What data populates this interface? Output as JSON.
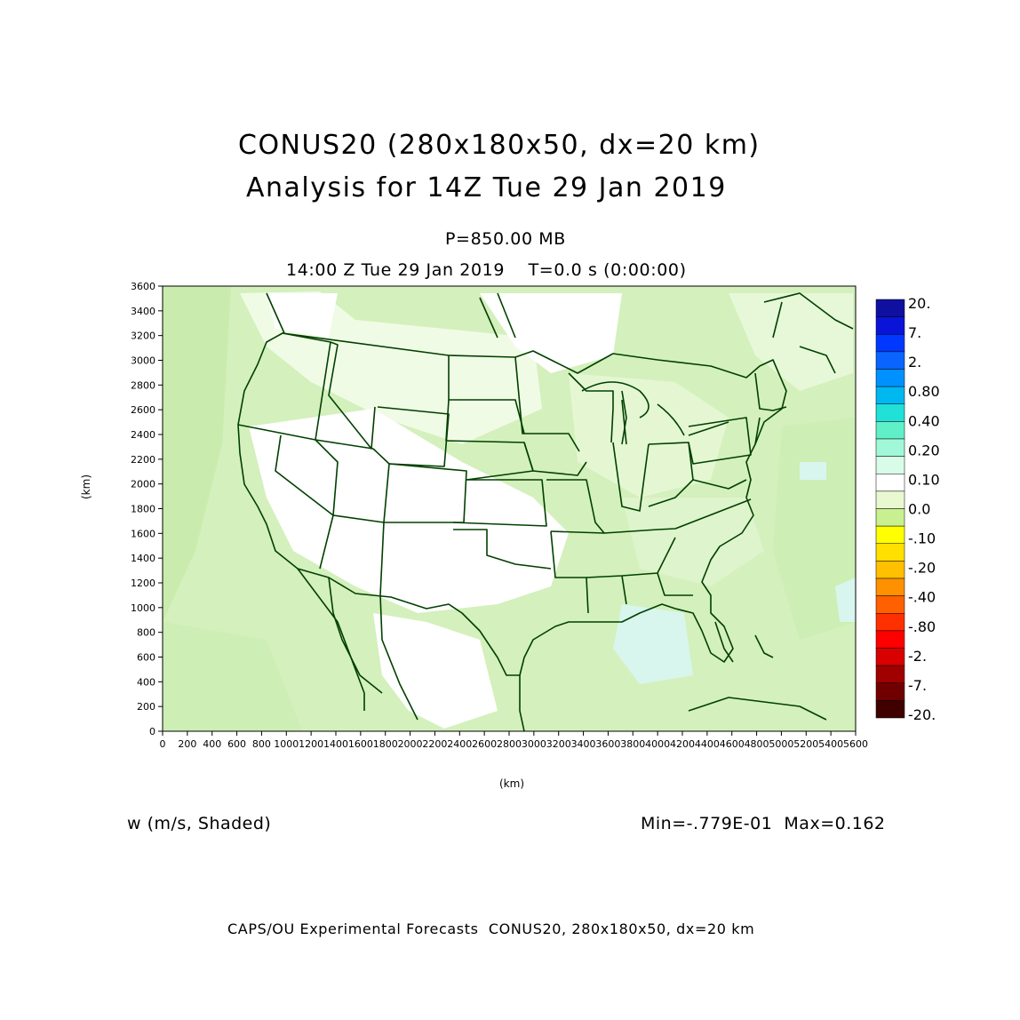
{
  "header": {
    "title_line1": "CONUS20 (280x180x50, dx=20 km)",
    "title_line2": "Analysis for 14Z Tue 29 Jan 2019",
    "level": "P=850.00 MB",
    "valid_time": "14:00 Z Tue 29 Jan 2019    T=0.0 s (0:00:00)"
  },
  "axes": {
    "y_unit": "(km)",
    "x_unit": "(km)",
    "y_ticks": [
      "0",
      "200",
      "400",
      "600",
      "800",
      "1000",
      "1200",
      "1400",
      "1600",
      "1800",
      "2000",
      "2200",
      "2400",
      "2600",
      "2800",
      "3000",
      "3200",
      "3400",
      "3600"
    ],
    "x_ticks": [
      "0",
      "200",
      "400",
      "600",
      "800",
      "1000",
      "1200",
      "1400",
      "1600",
      "1800",
      "2000",
      "2200",
      "2400",
      "2600",
      "2800",
      "3000",
      "3200",
      "3400",
      "3600",
      "3800",
      "4000",
      "4200",
      "4400",
      "4600",
      "4800",
      "5000",
      "5200",
      "5400",
      "5600"
    ],
    "x_range": [
      0,
      5600
    ],
    "y_range": [
      0,
      3600
    ]
  },
  "colorbar": {
    "labels": [
      "20.",
      "7.",
      "2.",
      "0.80",
      "0.40",
      "0.20",
      "0.10",
      "0.0",
      "-.10",
      "-.20",
      "-.40",
      "-.80",
      "-2.",
      "-7.",
      "-20."
    ],
    "colors": [
      "#1010a0",
      "#0a14d8",
      "#0038ff",
      "#0a64ff",
      "#0090ff",
      "#00b8f0",
      "#20e0d8",
      "#60f0c8",
      "#a0f8d8",
      "#d8fce8",
      "#ffffff",
      "#e8f8d0",
      "#c8f090",
      "#ffff00",
      "#ffe000",
      "#ffc000",
      "#ff9000",
      "#ff6000",
      "#ff3000",
      "#ff0000",
      "#d80000",
      "#a00000",
      "#700000",
      "#400000"
    ]
  },
  "field": {
    "variable": "w (m/s, Shaded)",
    "minmax": "Min=-.779E-01  Max=0.162",
    "palette": {
      "land_light": "#e2f7d0",
      "field_green": "#d4f0bc",
      "field_green2": "#c9ecae",
      "cyan": "#d8f6ee",
      "outline": "#004000"
    }
  },
  "footer": {
    "credit": "CAPS/OU Experimental Forecasts  CONUS20, 280x180x50, dx=20 km"
  }
}
